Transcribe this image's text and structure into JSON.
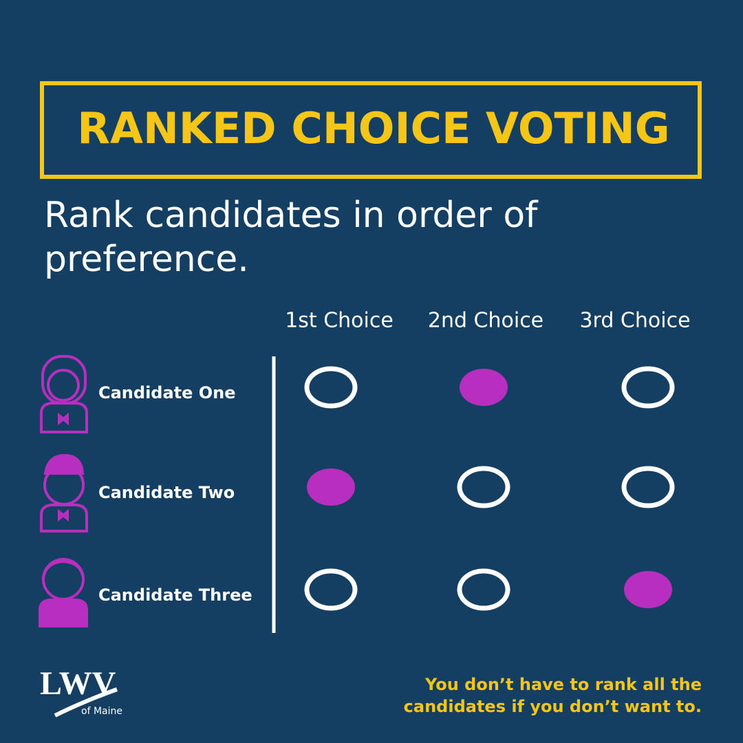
{
  "header": {
    "title": "RANKED CHOICE VOTING"
  },
  "subtitle": [
    "Rank candidates in order of",
    "preference."
  ],
  "columns": [
    "1st Choice",
    "2nd Choice",
    "3rd Choice"
  ],
  "candidates": [
    {
      "name": "Candidate One",
      "selected": [
        false,
        true,
        false
      ]
    },
    {
      "name": "Candidate Two",
      "selected": [
        true,
        false,
        false
      ]
    },
    {
      "name": "Candidate Three",
      "selected": [
        false,
        false,
        true
      ]
    }
  ],
  "note": [
    "You don’t have to rank all the",
    "candidates if you don’t want to."
  ],
  "logo": {
    "name": "LWV",
    "place": "of Maine"
  }
}
